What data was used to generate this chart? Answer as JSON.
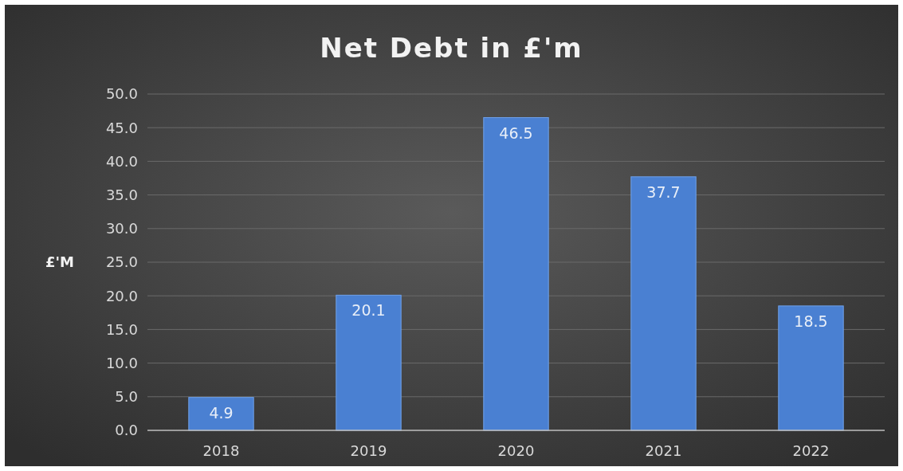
{
  "chart_data": {
    "type": "bar",
    "title": "Net Debt in £'m",
    "ylabel": "£'M",
    "categories": [
      "2018",
      "2019",
      "2020",
      "2021",
      "2022"
    ],
    "values": [
      4.9,
      20.1,
      46.5,
      37.7,
      18.5
    ],
    "color": "#4a80d2",
    "ylim": [
      0,
      50
    ],
    "yticks": [
      {
        "value": 0,
        "label": "0.0"
      },
      {
        "value": 5,
        "label": "5.0"
      },
      {
        "value": 10,
        "label": "10.0"
      },
      {
        "value": 15,
        "label": "15.0"
      },
      {
        "value": 20,
        "label": "20.0"
      },
      {
        "value": 25,
        "label": "25.0"
      },
      {
        "value": 30,
        "label": "30.0"
      },
      {
        "value": 35,
        "label": "35.0"
      },
      {
        "value": 40,
        "label": "40.0"
      },
      {
        "value": 45,
        "label": "45.0"
      },
      {
        "value": 50,
        "label": "50.0"
      }
    ],
    "grid": true,
    "data_labels": true
  }
}
